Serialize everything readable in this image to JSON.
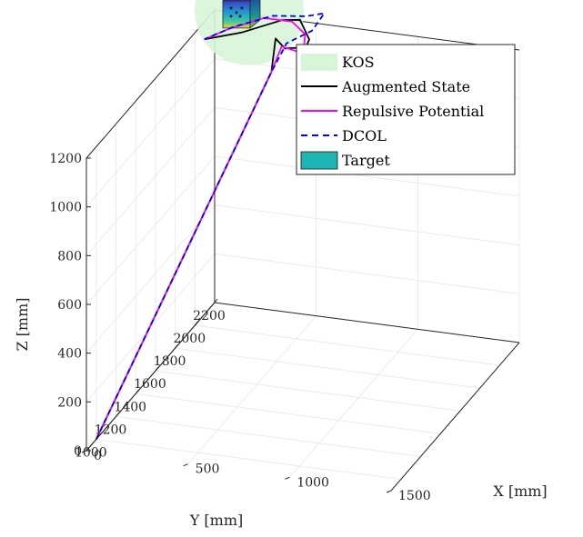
{
  "chart_data": {
    "type": "line",
    "view": "3d",
    "grid": true,
    "xlabel": "X [mm]",
    "ylabel": "Y [mm]",
    "zlabel": "Z [mm]",
    "xlim": [
      0,
      1500
    ],
    "ylim": [
      900,
      2200
    ],
    "zlim": [
      0,
      1200
    ],
    "x_ticks": [
      "0",
      "500",
      "1000",
      "1500"
    ],
    "y_ticks": [
      "2200",
      "2000",
      "1800",
      "1600",
      "1400",
      "1200",
      "1000"
    ],
    "z_ticks": [
      "0",
      "200",
      "400",
      "600",
      "800",
      "1000",
      "1200"
    ],
    "legend": {
      "location": "top-right",
      "entries": [
        {
          "label": "KOS",
          "kind": "patch",
          "color": "#d8f5d8"
        },
        {
          "label": "Augmented State",
          "kind": "line",
          "color": "#000000",
          "dash": "solid"
        },
        {
          "label": "Repulsive Potential",
          "kind": "line",
          "color": "#ff00ff",
          "dash": "solid"
        },
        {
          "label": "DCOL",
          "kind": "line",
          "color": "#0000ff",
          "dash": "dashed"
        },
        {
          "label": "Target",
          "kind": "patch",
          "color": "#1fb5b5"
        }
      ]
    },
    "series": [
      {
        "name": "Augmented State",
        "color": "#000000",
        "dash": "solid",
        "points": [
          [
            0,
            1000,
            0
          ],
          [
            600,
            1540,
            1320
          ],
          [
            640,
            1500,
            1480
          ],
          [
            700,
            1470,
            1460
          ],
          [
            780,
            1520,
            1450
          ],
          [
            820,
            1470,
            1510
          ],
          [
            760,
            1500,
            1570
          ],
          [
            700,
            1440,
            1590
          ],
          [
            560,
            1320,
            1580
          ],
          [
            440,
            1190,
            1600
          ]
        ]
      },
      {
        "name": "Repulsive Potential",
        "color": "#ff00ff",
        "dash": "solid",
        "points": [
          [
            0,
            1000,
            0
          ],
          [
            600,
            1540,
            1320
          ],
          [
            660,
            1520,
            1440
          ],
          [
            740,
            1500,
            1440
          ],
          [
            800,
            1460,
            1490
          ],
          [
            820,
            1430,
            1550
          ],
          [
            760,
            1420,
            1600
          ],
          [
            640,
            1380,
            1620
          ],
          [
            520,
            1280,
            1610
          ],
          [
            440,
            1190,
            1600
          ]
        ]
      },
      {
        "name": "DCOL",
        "color": "#0000ff",
        "dash": "dashed",
        "points": [
          [
            0,
            1000,
            0
          ],
          [
            600,
            1540,
            1320
          ],
          [
            660,
            1570,
            1430
          ],
          [
            780,
            1580,
            1490
          ],
          [
            880,
            1500,
            1610
          ],
          [
            840,
            1400,
            1640
          ],
          [
            700,
            1350,
            1650
          ],
          [
            540,
            1280,
            1620
          ],
          [
            440,
            1190,
            1600
          ]
        ]
      }
    ],
    "kos": {
      "center": [
        520,
        1480,
        1590
      ],
      "radius": 260
    },
    "target": {
      "center": [
        520,
        1480,
        1590
      ],
      "size": 160
    }
  }
}
